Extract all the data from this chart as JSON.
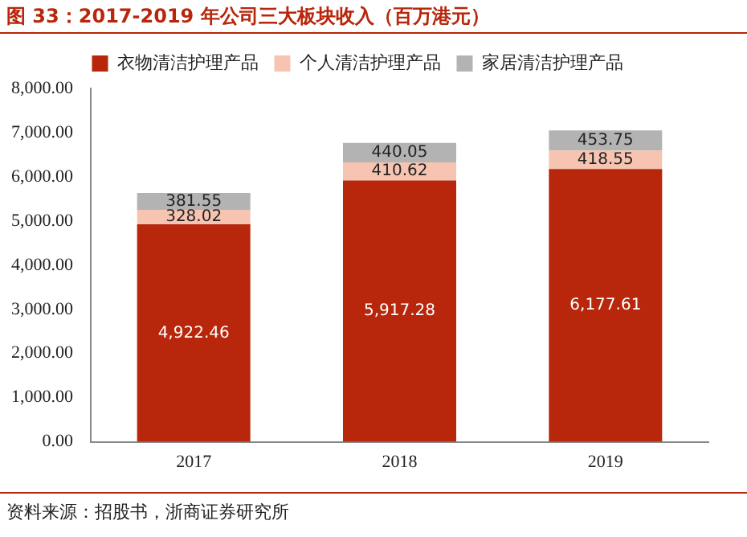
{
  "chart_data": {
    "type": "bar",
    "title": "图 33：2017-2019 年公司三大板块收入（百万港元）",
    "categories": [
      "2017",
      "2018",
      "2019"
    ],
    "stacked": true,
    "legend": "top",
    "grid": false,
    "ylim": [
      0,
      8000
    ],
    "yticks": [
      {
        "value": 0,
        "label": "0.00"
      },
      {
        "value": 1000,
        "label": "1,000.00"
      },
      {
        "value": 2000,
        "label": "2,000.00"
      },
      {
        "value": 3000,
        "label": "3,000.00"
      },
      {
        "value": 4000,
        "label": "4,000.00"
      },
      {
        "value": 5000,
        "label": "5,000.00"
      },
      {
        "value": 6000,
        "label": "6,000.00"
      },
      {
        "value": 7000,
        "label": "7,000.00"
      },
      {
        "value": 8000,
        "label": "8,000.00"
      }
    ],
    "series": [
      {
        "name": "衣物清洁护理产品",
        "color": "#b8260b",
        "values": [
          4922.46,
          5917.28,
          6177.61
        ],
        "value_labels": [
          "4,922.46",
          "5,917.28",
          "6,177.61"
        ]
      },
      {
        "name": "个人清洁护理产品",
        "color": "#f7c4b2",
        "values": [
          328.02,
          410.62,
          418.55
        ],
        "value_labels": [
          "328.02",
          "410.62",
          "418.55"
        ]
      },
      {
        "name": "家居清洁护理产品",
        "color": "#b3b3b3",
        "values": [
          381.55,
          440.05,
          453.75
        ],
        "value_labels": [
          "381.55",
          "440.05",
          "453.75"
        ]
      }
    ],
    "annotations": [
      "资料来源：招股书，浙商证券研究所"
    ]
  }
}
